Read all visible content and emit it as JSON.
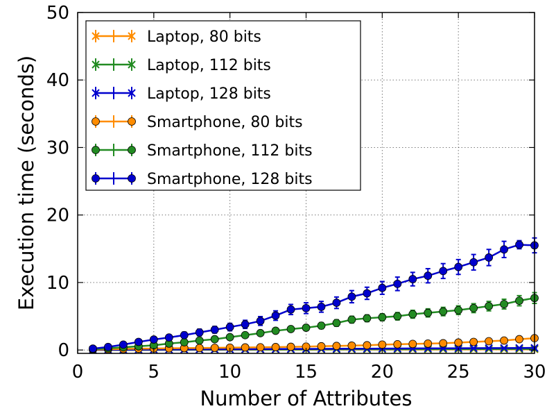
{
  "chart_data": {
    "type": "line",
    "title": "",
    "xlabel": "Number of Attributes",
    "ylabel": "Execution time (seconds)",
    "xlim": [
      0,
      30
    ],
    "ylim": [
      -0.5,
      50
    ],
    "xticks": [
      0,
      5,
      10,
      15,
      20,
      25,
      30
    ],
    "yticks": [
      0,
      10,
      20,
      30,
      40,
      50
    ],
    "grid": true,
    "legend_position": "top-left",
    "x": [
      1,
      2,
      3,
      4,
      5,
      6,
      7,
      8,
      9,
      10,
      11,
      12,
      13,
      14,
      15,
      16,
      17,
      18,
      19,
      20,
      21,
      22,
      23,
      24,
      25,
      26,
      27,
      28,
      29,
      30
    ],
    "series": [
      {
        "name": "Laptop, 80 bits",
        "color": "#ff8c00",
        "marker": "x",
        "values": [
          0.01,
          0.01,
          0.02,
          0.02,
          0.02,
          0.03,
          0.03,
          0.03,
          0.03,
          0.04,
          0.04,
          0.04,
          0.05,
          0.05,
          0.05,
          0.05,
          0.06,
          0.06,
          0.06,
          0.07,
          0.07,
          0.07,
          0.07,
          0.08,
          0.08,
          0.08,
          0.09,
          0.09,
          0.09,
          0.1
        ],
        "errors": [
          0.02,
          0.02,
          0.02,
          0.02,
          0.02,
          0.02,
          0.02,
          0.02,
          0.02,
          0.02,
          0.02,
          0.02,
          0.02,
          0.02,
          0.02,
          0.02,
          0.02,
          0.02,
          0.02,
          0.02,
          0.02,
          0.02,
          0.02,
          0.02,
          0.02,
          0.02,
          0.02,
          0.02,
          0.02,
          0.02
        ]
      },
      {
        "name": "Laptop, 112 bits",
        "color": "#228b22",
        "marker": "x",
        "values": [
          0.01,
          0.02,
          0.02,
          0.03,
          0.03,
          0.04,
          0.04,
          0.05,
          0.05,
          0.06,
          0.06,
          0.07,
          0.07,
          0.08,
          0.08,
          0.09,
          0.09,
          0.1,
          0.1,
          0.11,
          0.11,
          0.12,
          0.12,
          0.13,
          0.13,
          0.14,
          0.14,
          0.15,
          0.15,
          0.16
        ],
        "errors": [
          0.02,
          0.02,
          0.02,
          0.02,
          0.02,
          0.02,
          0.02,
          0.02,
          0.02,
          0.02,
          0.02,
          0.02,
          0.02,
          0.02,
          0.02,
          0.02,
          0.02,
          0.02,
          0.02,
          0.02,
          0.02,
          0.02,
          0.02,
          0.02,
          0.02,
          0.02,
          0.02,
          0.02,
          0.02,
          0.02
        ]
      },
      {
        "name": "Laptop, 128 bits",
        "color": "#0000cd",
        "marker": "x",
        "values": [
          0.02,
          0.03,
          0.04,
          0.05,
          0.06,
          0.07,
          0.08,
          0.09,
          0.1,
          0.11,
          0.12,
          0.13,
          0.14,
          0.15,
          0.16,
          0.17,
          0.18,
          0.19,
          0.2,
          0.21,
          0.22,
          0.23,
          0.24,
          0.25,
          0.26,
          0.27,
          0.28,
          0.29,
          0.3,
          0.31
        ],
        "errors": [
          0.03,
          0.03,
          0.03,
          0.03,
          0.03,
          0.03,
          0.03,
          0.03,
          0.03,
          0.03,
          0.03,
          0.03,
          0.03,
          0.03,
          0.03,
          0.03,
          0.03,
          0.03,
          0.03,
          0.03,
          0.03,
          0.03,
          0.03,
          0.03,
          0.03,
          0.03,
          0.03,
          0.03,
          0.03,
          0.03
        ]
      },
      {
        "name": "Smartphone, 80 bits",
        "color": "#ff8c00",
        "marker": "o",
        "values": [
          0.05,
          0.1,
          0.15,
          0.2,
          0.22,
          0.25,
          0.28,
          0.3,
          0.32,
          0.35,
          0.38,
          0.4,
          0.43,
          0.47,
          0.5,
          0.55,
          0.6,
          0.65,
          0.7,
          0.8,
          0.85,
          0.9,
          0.95,
          1.0,
          1.1,
          1.2,
          1.3,
          1.4,
          1.6,
          1.75
        ],
        "errors": [
          0.05,
          0.05,
          0.05,
          0.06,
          0.06,
          0.06,
          0.07,
          0.07,
          0.07,
          0.08,
          0.08,
          0.08,
          0.09,
          0.09,
          0.1,
          0.1,
          0.1,
          0.12,
          0.12,
          0.13,
          0.14,
          0.15,
          0.16,
          0.17,
          0.18,
          0.2,
          0.22,
          0.24,
          0.26,
          0.3
        ]
      },
      {
        "name": "Smartphone, 112 bits",
        "color": "#228b22",
        "marker": "o",
        "values": [
          0.1,
          0.25,
          0.4,
          0.55,
          0.7,
          0.95,
          1.15,
          1.4,
          1.6,
          1.9,
          2.2,
          2.5,
          2.85,
          3.1,
          3.3,
          3.6,
          4.0,
          4.5,
          4.7,
          4.85,
          5.0,
          5.3,
          5.5,
          5.7,
          5.9,
          6.2,
          6.5,
          6.8,
          7.3,
          7.7
        ],
        "errors": [
          0.1,
          0.12,
          0.14,
          0.16,
          0.18,
          0.2,
          0.22,
          0.25,
          0.28,
          0.3,
          0.32,
          0.35,
          0.38,
          0.4,
          0.42,
          0.45,
          0.48,
          0.5,
          0.5,
          0.52,
          0.55,
          0.58,
          0.6,
          0.62,
          0.64,
          0.66,
          0.7,
          0.72,
          0.75,
          0.8
        ]
      },
      {
        "name": "Smartphone, 128 bits",
        "color": "#0000cd",
        "marker": "o",
        "values": [
          0.2,
          0.45,
          0.8,
          1.2,
          1.55,
          1.85,
          2.2,
          2.6,
          3.0,
          3.4,
          3.8,
          4.3,
          5.1,
          6.0,
          6.2,
          6.4,
          7.0,
          7.9,
          8.4,
          9.2,
          9.8,
          10.5,
          11.0,
          11.7,
          12.3,
          13.0,
          13.7,
          14.9,
          15.6,
          15.5
        ],
        "errors": [
          0.15,
          0.2,
          0.25,
          0.3,
          0.35,
          0.4,
          0.45,
          0.5,
          0.5,
          0.55,
          0.6,
          0.65,
          0.7,
          0.75,
          0.8,
          0.8,
          0.85,
          0.9,
          0.9,
          0.95,
          1.0,
          1.0,
          1.05,
          1.1,
          1.1,
          1.15,
          1.2,
          1.2,
          0.6,
          1.1
        ]
      }
    ]
  }
}
